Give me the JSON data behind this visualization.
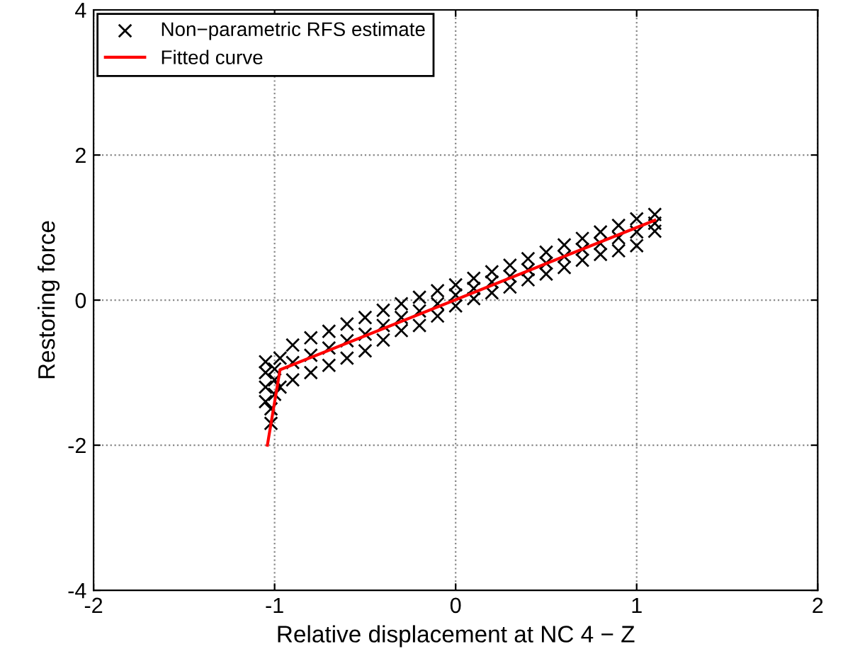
{
  "chart_data": {
    "type": "scatter",
    "xlabel": "Relative displacement at NC 4 − Z",
    "ylabel": "Restoring force",
    "xlim": [
      -2,
      2
    ],
    "ylim": [
      -4,
      4
    ],
    "xticks": [
      -2,
      -1,
      0,
      1,
      2
    ],
    "yticks": [
      -4,
      -2,
      0,
      2,
      4
    ],
    "grid": true,
    "legend": "top left",
    "series": [
      {
        "name": "Non−parametric RFS estimate",
        "color": "#000000",
        "marker": "cross",
        "x": [
          -0.9,
          -0.8,
          -0.7,
          -0.6,
          -0.5,
          -0.4,
          -0.3,
          -0.2,
          -0.1,
          0.0,
          0.1,
          0.2,
          0.3,
          0.4,
          0.5,
          0.6,
          0.7,
          0.8,
          0.9,
          1.0,
          1.1,
          -0.9,
          -0.8,
          -0.7,
          -0.6,
          -0.5,
          -0.4,
          -0.3,
          -0.2,
          -0.1,
          0.0,
          0.1,
          0.2,
          0.3,
          0.4,
          0.5,
          0.6,
          0.7,
          0.8,
          0.9,
          1.0,
          1.1,
          -0.9,
          -0.8,
          -0.7,
          -0.6,
          -0.5,
          -0.4,
          -0.3,
          -0.2,
          -0.1,
          0.0,
          0.1,
          0.2,
          0.3,
          0.4,
          0.5,
          0.6,
          0.7,
          0.8,
          0.9,
          1.0,
          1.1,
          -1.05,
          -1.05,
          -1.05,
          -1.05,
          -1.02,
          -1.02,
          -1.0,
          -1.0,
          -1.0,
          -0.97,
          -0.97
        ],
        "values": [
          -0.62,
          -0.52,
          -0.43,
          -0.33,
          -0.24,
          -0.14,
          -0.05,
          0.04,
          0.13,
          0.21,
          0.3,
          0.39,
          0.48,
          0.57,
          0.66,
          0.76,
          0.85,
          0.94,
          1.03,
          1.12,
          1.18,
          -1.1,
          -1.0,
          -0.9,
          -0.8,
          -0.7,
          -0.55,
          -0.42,
          -0.35,
          -0.22,
          -0.08,
          0.02,
          0.1,
          0.18,
          0.28,
          0.36,
          0.45,
          0.55,
          0.63,
          0.68,
          0.75,
          0.95,
          -0.86,
          -0.76,
          -0.66,
          -0.56,
          -0.47,
          -0.35,
          -0.24,
          -0.15,
          -0.05,
          0.07,
          0.16,
          0.25,
          0.33,
          0.42,
          0.51,
          0.6,
          0.7,
          0.78,
          0.86,
          0.94,
          1.06,
          -0.85,
          -1.0,
          -1.2,
          -1.4,
          -1.5,
          -1.7,
          -0.95,
          -1.1,
          -1.3,
          -0.8,
          -1.2
        ]
      },
      {
        "name": "Fitted curve",
        "type": "line",
        "color": "#ff0000",
        "marker": "none",
        "line_style": "solid",
        "x": [
          -1.04,
          -0.97,
          1.1
        ],
        "values": [
          -2.0,
          -0.96,
          1.1
        ]
      }
    ]
  }
}
